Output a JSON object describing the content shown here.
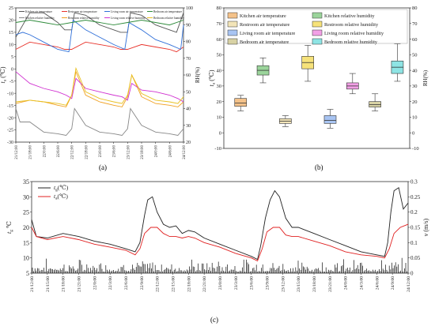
{
  "captions": [
    "(a)",
    "(b)",
    "(c)"
  ],
  "chart_data": [
    {
      "type": "line",
      "panel": "(a)",
      "ylabel_left": "t_a (℃)",
      "ylabel_left_main": "t",
      "ylabel_left_sub": "a",
      "ylabel_left_unit": "(℃)",
      "ylabel_right": "RH(%)",
      "ylim_left": [
        -30,
        25
      ],
      "ylim_right": [
        20,
        100
      ],
      "yticks_left": [
        25,
        20,
        15,
        10,
        5,
        0,
        -5,
        -10,
        -15,
        -20,
        -25,
        -30
      ],
      "yticks_right": [
        100,
        90,
        80,
        70,
        60,
        50,
        40,
        30,
        20
      ],
      "x_ticks": [
        "21/12:00",
        "21/18:00",
        "22/0:00",
        "22/6:00",
        "22/12:00",
        "22/18:00",
        "23/0:00",
        "23/6:00",
        "23/12:00",
        "23/18:00",
        "24/0:00",
        "24/6:00",
        "24/12:00"
      ],
      "legend": [
        {
          "name": "Kitchen air temperature",
          "color": "#555555"
        },
        {
          "name": "Restroom air temperature",
          "color": "#e8322a"
        },
        {
          "name": "Living room air temperature",
          "color": "#2f6fd8"
        },
        {
          "name": "Bedroom air temperature",
          "color": "#2d8a3a"
        },
        {
          "name": "Kitchen relative humidity",
          "color": "#888888"
        },
        {
          "name": "Restroom relative humidity",
          "color": "#f0a020"
        },
        {
          "name": "Living room relative humidity",
          "color": "#d030d0"
        },
        {
          "name": "Bedroom relative humidity",
          "color": "#e8c020"
        }
      ],
      "series": [
        {
          "name": "Kitchen air temperature",
          "axis": "left",
          "x": [
            0,
            1,
            2,
            3,
            3.5,
            4,
            4.2,
            5,
            6,
            7,
            7.5,
            8,
            8.2,
            9,
            10,
            11,
            11.5,
            12
          ],
          "values": [
            13,
            23,
            23,
            19,
            16,
            16,
            23,
            22,
            18,
            16,
            15,
            15,
            23,
            22,
            18,
            16,
            15,
            23
          ]
        },
        {
          "name": "Restroom air temperature",
          "axis": "left",
          "x": [
            0,
            1,
            2,
            3,
            3.5,
            4,
            5,
            6,
            7,
            7.5,
            8,
            9,
            10,
            11,
            11.5,
            12
          ],
          "values": [
            8,
            11,
            10,
            9,
            8,
            8,
            11,
            10,
            9,
            8,
            8,
            10,
            9,
            8,
            7,
            9
          ]
        },
        {
          "name": "Living room air temperature",
          "axis": "left",
          "x": [
            0,
            0.5,
            1,
            2,
            3,
            3.8,
            4.1,
            5,
            6,
            7,
            7.8,
            8.1,
            9,
            10,
            11,
            11.8,
            12
          ],
          "values": [
            14,
            15,
            14,
            11,
            8,
            7,
            20,
            16,
            13,
            10,
            8,
            19,
            16,
            12,
            10,
            8,
            18
          ]
        },
        {
          "name": "Bedroom air temperature",
          "axis": "left",
          "x": [
            0,
            1,
            2,
            3,
            4,
            5,
            6,
            7,
            8,
            9,
            10,
            11,
            12
          ],
          "values": [
            19,
            20,
            19,
            18,
            19,
            20,
            19,
            18,
            19,
            20,
            19,
            18,
            20
          ]
        },
        {
          "name": "Kitchen relative humidity",
          "axis": "right",
          "x": [
            0,
            0.3,
            1,
            2,
            3,
            3.6,
            4,
            4.2,
            5,
            6,
            7,
            7.6,
            8,
            8.2,
            9,
            10,
            11,
            11.6,
            12
          ],
          "values": [
            40,
            32,
            32,
            26,
            25,
            24,
            28,
            40,
            30,
            26,
            25,
            24,
            28,
            40,
            30,
            26,
            25,
            24,
            28
          ]
        },
        {
          "name": "Restroom relative humidity",
          "axis": "right",
          "x": [
            0,
            1,
            2,
            3,
            3.6,
            4,
            4.3,
            5,
            6,
            7,
            7.6,
            8,
            8.3,
            9,
            10,
            11,
            11.6,
            12
          ],
          "values": [
            43,
            45,
            44,
            42,
            41,
            48,
            62,
            48,
            44,
            42,
            41,
            47,
            60,
            47,
            43,
            42,
            41,
            44
          ]
        },
        {
          "name": "Living room relative humidity",
          "axis": "right",
          "x": [
            0,
            1,
            2,
            3,
            3.6,
            4,
            4.3,
            5,
            6,
            7,
            7.6,
            8,
            8.3,
            9,
            10,
            11,
            11.6,
            12
          ],
          "values": [
            62,
            55,
            52,
            50,
            48,
            46,
            58,
            52,
            50,
            48,
            47,
            45,
            55,
            51,
            50,
            48,
            46,
            44
          ]
        },
        {
          "name": "Bedroom relative humidity",
          "axis": "right",
          "x": [
            0,
            1,
            2,
            3,
            3.6,
            4,
            4.3,
            5,
            6,
            7,
            7.6,
            8,
            8.3,
            9,
            10,
            11,
            11.6,
            12
          ],
          "values": [
            44,
            45,
            44,
            43,
            42,
            48,
            64,
            50,
            46,
            44,
            43,
            48,
            60,
            49,
            45,
            44,
            43,
            47
          ]
        }
      ]
    },
    {
      "type": "box",
      "panel": "(b)",
      "ylabel_left": "t_a (℃)",
      "ylabel_left_main": "t",
      "ylabel_left_sub": "a",
      "ylabel_left_unit": "(℃)",
      "ylabel_right": "RH(%)",
      "ylim": [
        -10,
        80
      ],
      "yticks": [
        80,
        70,
        60,
        50,
        40,
        30,
        20,
        10,
        0,
        -10
      ],
      "legend": [
        {
          "name": "Kitchen air temperature",
          "color": "#f4c28a"
        },
        {
          "name": "Kitchen relative humidity",
          "color": "#9bd49b"
        },
        {
          "name": "Restroom air temperature",
          "color": "#f2e4b8"
        },
        {
          "name": "Restroom relative humidity",
          "color": "#f6e27a"
        },
        {
          "name": "Living room air temperature",
          "color": "#a8c4f2"
        },
        {
          "name": "Living room relative humidity",
          "color": "#f2a0e6"
        },
        {
          "name": "Bedroom air temperature",
          "color": "#d8d2a4"
        },
        {
          "name": "Bedroom relative humidity",
          "color": "#8ee4e4"
        }
      ],
      "boxes": [
        {
          "name": "Kitchen air temperature",
          "color": "#f4c28a",
          "min": 14,
          "q1": 17,
          "median": 19,
          "q3": 22,
          "max": 24
        },
        {
          "name": "Kitchen relative humidity",
          "color": "#9bd49b",
          "min": 32,
          "q1": 37,
          "median": 40,
          "q3": 43,
          "max": 48
        },
        {
          "name": "Restroom air temperature",
          "color": "#f2e4b8",
          "min": 4,
          "q1": 6,
          "median": 7.5,
          "q3": 9,
          "max": 11
        },
        {
          "name": "Restroom relative humidity",
          "color": "#f6e27a",
          "min": 33,
          "q1": 41,
          "median": 45,
          "q3": 49,
          "max": 56
        },
        {
          "name": "Living room air temperature",
          "color": "#a8c4f2",
          "min": 3,
          "q1": 6,
          "median": 8,
          "q3": 11,
          "max": 15
        },
        {
          "name": "Living room relative humidity",
          "color": "#f2a0e6",
          "min": 25,
          "q1": 28,
          "median": 30,
          "q3": 32,
          "max": 38
        },
        {
          "name": "Bedroom air temperature",
          "color": "#d8d2a4",
          "min": 14,
          "q1": 16.5,
          "median": 18,
          "q3": 20,
          "max": 25
        },
        {
          "name": "Bedroom relative humidity",
          "color": "#8ee4e4",
          "min": 33,
          "q1": 38,
          "median": 42,
          "q3": 46,
          "max": 57
        }
      ]
    },
    {
      "type": "line",
      "panel": "(c)",
      "ylabel_left": "t_g ℃",
      "ylabel_left_main": "t",
      "ylabel_left_sub": "g",
      "ylabel_left_unit": "℃",
      "ylabel_right": "v (m/s)",
      "ylabel_right_main": "v",
      "ylabel_right_unit": "(m/s)",
      "ylim_left": [
        5,
        35
      ],
      "ylim_right": [
        0,
        0.3
      ],
      "yticks_left": [
        35,
        30,
        25,
        20,
        15,
        10,
        5
      ],
      "yticks_right": [
        0.3,
        0.25,
        0.2,
        0.15,
        0.1,
        0.05,
        0
      ],
      "x_ticks": [
        "21/12:00",
        "21/15:00",
        "21/18:00",
        "21/21:00",
        "22/0:00",
        "22/3:00",
        "22/6:00",
        "22/9:00",
        "22/12:00",
        "22/15:00",
        "22/18:00",
        "22/21:00",
        "23/0:00",
        "23/3:00",
        "23/6:00",
        "23/9:00",
        "23/12:00",
        "23/15:00",
        "23/18:00",
        "23/21:00",
        "24/0:00",
        "24/3:00",
        "24/6:00",
        "24/9:00",
        "24/12:00"
      ],
      "legend": [
        {
          "name": "t_g (℃)",
          "main": "t",
          "sub": "g",
          "unit": "(℃)",
          "color": "#222222"
        },
        {
          "name": "t_a (℃)",
          "main": "t",
          "sub": "a",
          "unit": "(℃)",
          "color": "#e02020"
        }
      ],
      "series": [
        {
          "name": "t_g (℃)",
          "axis": "left",
          "x": [
            0,
            0.3,
            1,
            2,
            3,
            4,
            5,
            6,
            6.6,
            6.9,
            7.2,
            7.4,
            7.7,
            8,
            8.4,
            8.8,
            9.2,
            9.6,
            10,
            10.4,
            11,
            12,
            13,
            14,
            14.4,
            14.6,
            14.9,
            15.2,
            15.5,
            15.8,
            16.2,
            16.6,
            17,
            18,
            19,
            20,
            21,
            22,
            22.5,
            22.7,
            22.9,
            23.1,
            23.4,
            23.7,
            24
          ],
          "values": [
            22.5,
            17,
            16.5,
            18,
            17,
            15.5,
            14.5,
            13,
            12,
            15,
            24,
            29,
            30,
            25,
            21,
            20,
            20.5,
            18,
            19,
            18.5,
            16.5,
            14.5,
            12.5,
            10.5,
            9.5,
            14,
            23,
            29,
            32,
            30,
            23,
            20,
            20,
            18,
            16,
            14,
            12,
            11,
            10.5,
            15,
            25,
            32,
            33,
            26,
            28
          ]
        },
        {
          "name": "t_a (℃)",
          "axis": "left",
          "x": [
            0,
            0.3,
            1,
            2,
            3,
            4,
            5,
            6,
            6.6,
            6.9,
            7.2,
            7.6,
            8,
            8.4,
            8.8,
            9.2,
            9.6,
            10,
            10.4,
            11,
            12,
            13,
            14,
            14.4,
            14.7,
            15,
            15.4,
            15.8,
            16.2,
            16.6,
            17,
            18,
            19,
            20,
            21,
            22,
            22.5,
            22.8,
            23.1,
            23.5,
            24
          ],
          "values": [
            20,
            17,
            16,
            17,
            16,
            14.5,
            13.5,
            12.5,
            11,
            13,
            18,
            20,
            20,
            18,
            17,
            17,
            16.5,
            17,
            16.5,
            15,
            13.5,
            11.5,
            10,
            9,
            13,
            18.5,
            20,
            20,
            17.5,
            17,
            17,
            15.5,
            14,
            12,
            11,
            10.5,
            10,
            13,
            18,
            20,
            21
          ]
        }
      ]
    }
  ]
}
